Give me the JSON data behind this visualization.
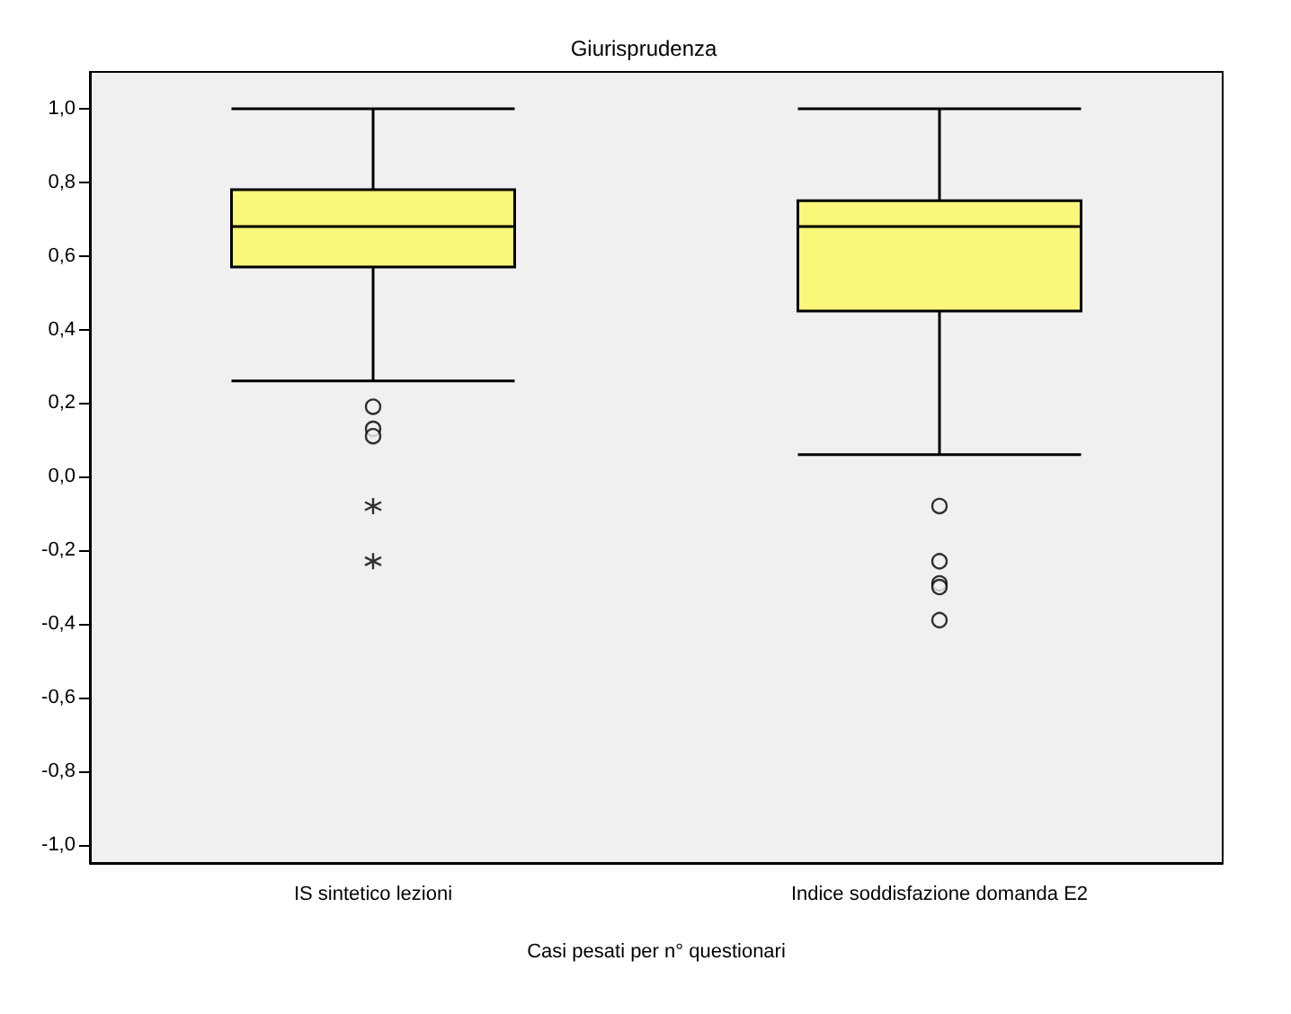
{
  "chart_data": {
    "type": "box",
    "title": "Giurisprudenza",
    "xlabel": "Casi pesati per n° questionari",
    "categories": [
      "IS sintetico lezioni",
      "Indice soddisfazione domanda E2"
    ],
    "series": [
      {
        "color": "#fbf77a",
        "boxes": [
          {
            "low": 0.26,
            "q1": 0.57,
            "median": 0.68,
            "q3": 0.78,
            "high": 1.0,
            "outliers": [
              0.19,
              0.13,
              0.11
            ]
          },
          {
            "low": 0.06,
            "q1": 0.45,
            "median": 0.68,
            "q3": 0.75,
            "high": 1.0,
            "outliers": [
              -0.08,
              -0.23,
              -0.29,
              -0.3,
              -0.39
            ]
          }
        ]
      },
      {
        "type": "scatter",
        "marker": "cross",
        "color": "#000000",
        "x": [
          "IS sintetico lezioni",
          "IS sintetico lezioni"
        ],
        "values": [
          -0.08,
          -0.23
        ]
      }
    ],
    "ylim": [
      -1.05,
      1.1
    ],
    "yticks": [
      {
        "value": -1,
        "label": "-1,0"
      },
      {
        "value": -0.8,
        "label": "-0,8"
      },
      {
        "value": -0.6,
        "label": "-0,6"
      },
      {
        "value": -0.4,
        "label": "-0,4"
      },
      {
        "value": -0.2,
        "label": "-0,2"
      },
      {
        "value": 0,
        "label": "0,0"
      },
      {
        "value": 0.2,
        "label": "0,2"
      },
      {
        "value": 0.4,
        "label": "0,4"
      },
      {
        "value": 0.6,
        "label": "0,6"
      },
      {
        "value": 0.8,
        "label": "0,8"
      },
      {
        "value": 1,
        "label": "1,0"
      }
    ],
    "grid": false
  }
}
